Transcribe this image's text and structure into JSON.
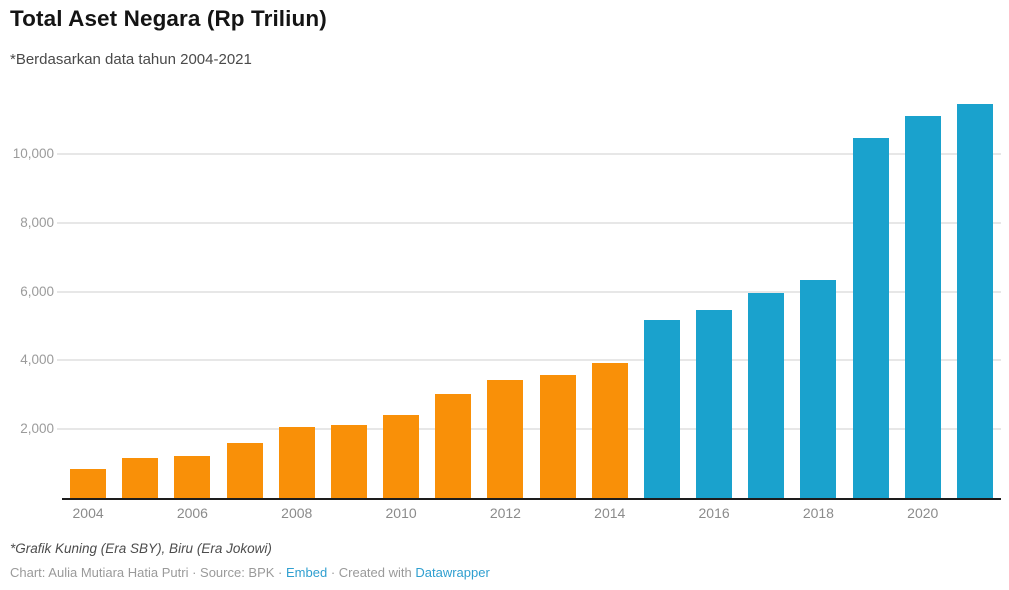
{
  "header": {
    "title": "Total Aset Negara (Rp Triliun)",
    "subtitle": "*Berdasarkan data tahun 2004-2021"
  },
  "chart_data": {
    "type": "bar",
    "title": "Total Aset Negara (Rp Triliun)",
    "subtitle": "*Berdasarkan data tahun 2004-2021",
    "categories": [
      "2004",
      "2005",
      "2006",
      "2007",
      "2008",
      "2009",
      "2010",
      "2011",
      "2012",
      "2013",
      "2014",
      "2015",
      "2016",
      "2017",
      "2018",
      "2019",
      "2020",
      "2021"
    ],
    "values": [
      830,
      1170,
      1220,
      1600,
      2060,
      2120,
      2420,
      3020,
      3430,
      3560,
      3910,
      5160,
      5460,
      5950,
      6330,
      10470,
      11100,
      11450
    ],
    "bar_eras": [
      "SBY",
      "SBY",
      "SBY",
      "SBY",
      "SBY",
      "SBY",
      "SBY",
      "SBY",
      "SBY",
      "SBY",
      "SBY",
      "Jokowi",
      "Jokowi",
      "Jokowi",
      "Jokowi",
      "Jokowi",
      "Jokowi",
      "Jokowi"
    ],
    "era_colors": {
      "SBY": "#F99008",
      "Jokowi": "#1AA2CD"
    },
    "ylim": [
      0,
      12000
    ],
    "yticks": [
      2000,
      4000,
      6000,
      8000,
      10000
    ],
    "ytick_labels": [
      "2,000",
      "4,000",
      "6,000",
      "8,000",
      "10,000"
    ],
    "xtick_labels": [
      "2004",
      "2006",
      "2008",
      "2010",
      "2012",
      "2014",
      "2016",
      "2018",
      "2020"
    ],
    "grid": "horizontal",
    "legend": "none",
    "note": "*Grafik Kuning (Era SBY), Biru (Era Jokowi)"
  },
  "footer": {
    "footnote": "*Grafik Kuning (Era SBY), Biru (Era Jokowi)",
    "credit": "Chart: Aulia Mutiara Hatia Putri · Source: BPK · ",
    "embed_label": "Embed",
    "created_with": " · Created with ",
    "datawrapper_label": "Datawrapper"
  },
  "colors": {
    "era_sby_orange": "#F99008",
    "era_jokowi_blue": "#1AA2CD",
    "link_blue": "#2f9fd0",
    "gridline": "#e7e7e7",
    "axis_line": "#1d1d1d"
  }
}
